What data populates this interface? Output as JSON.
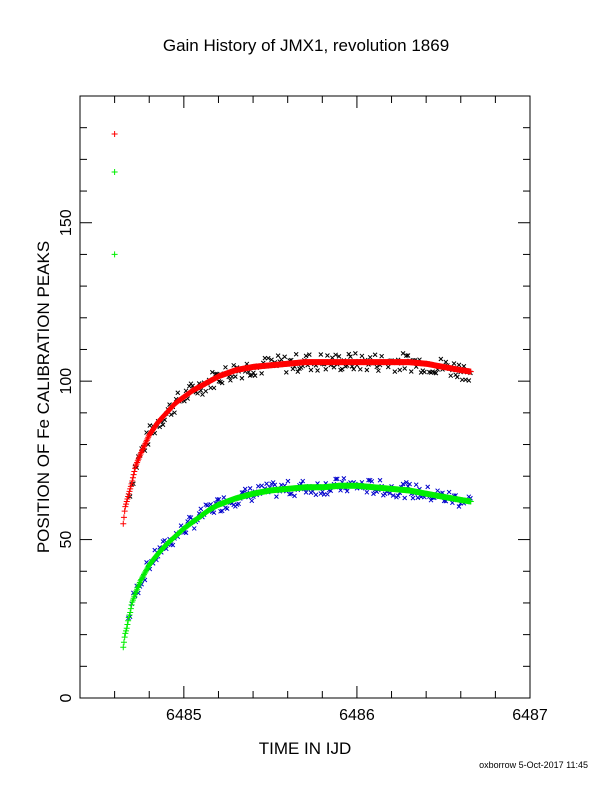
{
  "title": "Gain History of JMX1, revolution 1869",
  "footer": "oxborrow  5-Oct-2017 11:45",
  "chart_data": {
    "type": "scatter",
    "title": "Gain History of JMX1, revolution 1869",
    "xlabel": "TIME IN IJD",
    "ylabel": "POSITION OF Fe CALIBRATION PEAKS",
    "xlim": [
      6484.4,
      6487.0
    ],
    "ylim": [
      0,
      190
    ],
    "x_ticks": [
      6485,
      6486,
      6487
    ],
    "x_tick_labels": [
      "6485",
      "6486",
      "6487"
    ],
    "y_ticks": [
      0,
      50,
      100,
      150
    ],
    "y_tick_labels": [
      "0",
      "50",
      "100",
      "150"
    ],
    "grid": false,
    "colors": {
      "upper_raw": "#000000",
      "upper_fit": "#ff0000",
      "lower_raw": "#0000cc",
      "lower_fit": "#00ee00"
    },
    "series": [
      {
        "marker": "+",
        "color": "#ff0000",
        "x": [
          6484.6,
          6484.65,
          6484.66,
          6484.67,
          6484.68,
          6484.69,
          6484.7,
          6484.72,
          6484.75,
          6484.8,
          6484.85,
          6484.9,
          6484.95,
          6485.0,
          6485.05,
          6485.1,
          6485.15,
          6485.2,
          6485.25,
          6485.3,
          6485.4,
          6485.5,
          6485.6,
          6485.7,
          6485.8,
          6485.9,
          6486.0,
          6486.1,
          6486.2,
          6486.3,
          6486.4,
          6486.5,
          6486.6,
          6486.66
        ],
        "y": [
          178,
          55,
          60,
          62,
          64,
          66,
          68,
          73,
          77,
          83,
          87,
          90,
          93,
          95,
          97,
          98.5,
          100,
          101.5,
          102.5,
          103.5,
          104.5,
          105,
          105.5,
          106,
          106,
          106,
          106,
          106,
          106,
          106,
          105.5,
          104.5,
          103.5,
          103
        ]
      },
      {
        "marker": "+",
        "color": "#00ee00",
        "x": [
          6484.6,
          6484.6,
          6484.65,
          6484.66,
          6484.67,
          6484.68,
          6484.69,
          6484.7,
          6484.72,
          6484.75,
          6484.8,
          6484.85,
          6484.9,
          6484.95,
          6485.0,
          6485.05,
          6485.1,
          6485.15,
          6485.2,
          6485.25,
          6485.3,
          6485.4,
          6485.5,
          6485.6,
          6485.7,
          6485.8,
          6485.9,
          6486.0,
          6486.1,
          6486.2,
          6486.3,
          6486.4,
          6486.5,
          6486.6,
          6486.66
        ],
        "y": [
          166,
          140,
          16,
          20,
          22,
          25,
          27,
          30,
          33,
          37,
          42,
          45.5,
          48.5,
          51,
          53.5,
          55.5,
          57.5,
          59.5,
          61,
          62,
          63,
          64.5,
          65.5,
          66,
          66.5,
          66.5,
          67,
          67,
          66.5,
          66,
          65.5,
          64.5,
          63.5,
          62.5,
          62
        ]
      }
    ]
  }
}
